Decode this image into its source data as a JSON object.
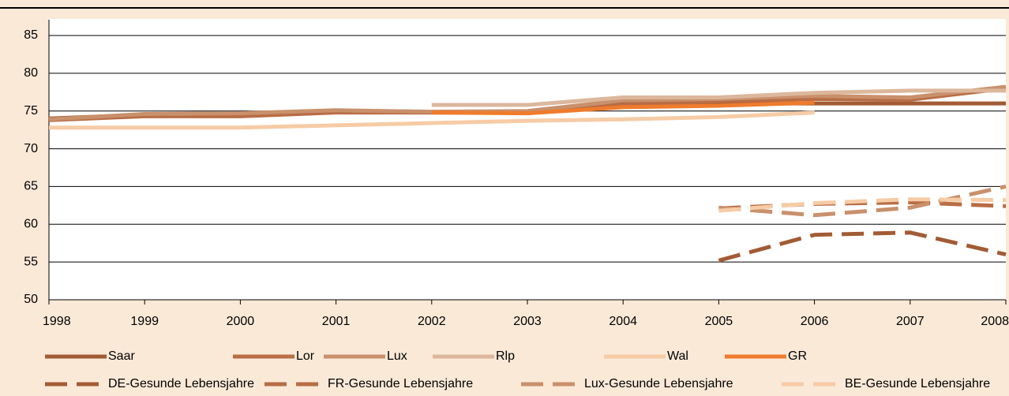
{
  "chart_data": {
    "type": "line",
    "x": [
      1998,
      1999,
      2000,
      2001,
      2002,
      2003,
      2004,
      2005,
      2006,
      2007,
      2008
    ],
    "xlim": [
      1998,
      2008
    ],
    "xticks": [
      1998,
      1999,
      2000,
      2001,
      2002,
      2003,
      2004,
      2005,
      2006,
      2007,
      2008
    ],
    "ylim": [
      50,
      85
    ],
    "yticks": [
      50,
      55,
      60,
      65,
      70,
      75,
      80,
      85
    ],
    "grid": true,
    "legend": "bottom",
    "series": [
      {
        "name": "Saar",
        "color": "#a25b34",
        "style": "solid",
        "values": [
          74,
          74.5,
          74.5,
          75,
          74.8,
          74.8,
          76,
          76,
          76,
          76,
          76
        ]
      },
      {
        "name": "Lor",
        "color": "#b86d45",
        "style": "solid",
        "values": [
          73.8,
          74.3,
          74.3,
          74.8,
          74.8,
          74.8,
          75.8,
          76.3,
          76.6,
          76.5,
          78
        ]
      },
      {
        "name": "Lux",
        "color": "#c9906c",
        "style": "solid",
        "values": [
          73.9,
          74.6,
          74.7,
          75.1,
          74.9,
          75,
          76.4,
          76.6,
          77,
          76.8,
          78.2
        ]
      },
      {
        "name": "Rlp",
        "color": "#dcb79c",
        "style": "solid",
        "values": [
          null,
          null,
          null,
          null,
          75.8,
          75.8,
          76.8,
          76.8,
          77.4,
          77.7,
          77.7
        ]
      },
      {
        "name": "Wal",
        "color": "#f6cba6",
        "style": "solid",
        "values": [
          72.8,
          72.8,
          72.8,
          73.1,
          73.4,
          73.7,
          73.9,
          74.2,
          74.8,
          null,
          null
        ]
      },
      {
        "name": "GR",
        "color": "#ef7b2c",
        "style": "solid",
        "values": [
          null,
          null,
          null,
          null,
          74.8,
          74.7,
          75.5,
          75.7,
          76.1,
          null,
          null
        ]
      },
      {
        "name": "DE-Gesunde Lebensjahre",
        "color": "#a25b34",
        "style": "dashed",
        "values": [
          null,
          null,
          null,
          null,
          null,
          null,
          null,
          55.2,
          58.6,
          58.9,
          56
        ]
      },
      {
        "name": "FR-Gesunde Lebensjahre",
        "color": "#b86d45",
        "style": "dashed",
        "values": [
          null,
          null,
          null,
          null,
          null,
          null,
          null,
          62.1,
          62.7,
          62.9,
          62.4
        ]
      },
      {
        "name": "Lux-Gesunde Lebensjahre",
        "color": "#c9906c",
        "style": "dashed",
        "values": [
          null,
          null,
          null,
          null,
          null,
          null,
          null,
          62.2,
          61.2,
          62.2,
          65
        ]
      },
      {
        "name": "BE-Gesunde Lebensjahre",
        "color": "#f6cba6",
        "style": "dashed",
        "values": [
          null,
          null,
          null,
          null,
          null,
          null,
          null,
          61.8,
          62.8,
          63.3,
          63.2
        ]
      }
    ]
  }
}
